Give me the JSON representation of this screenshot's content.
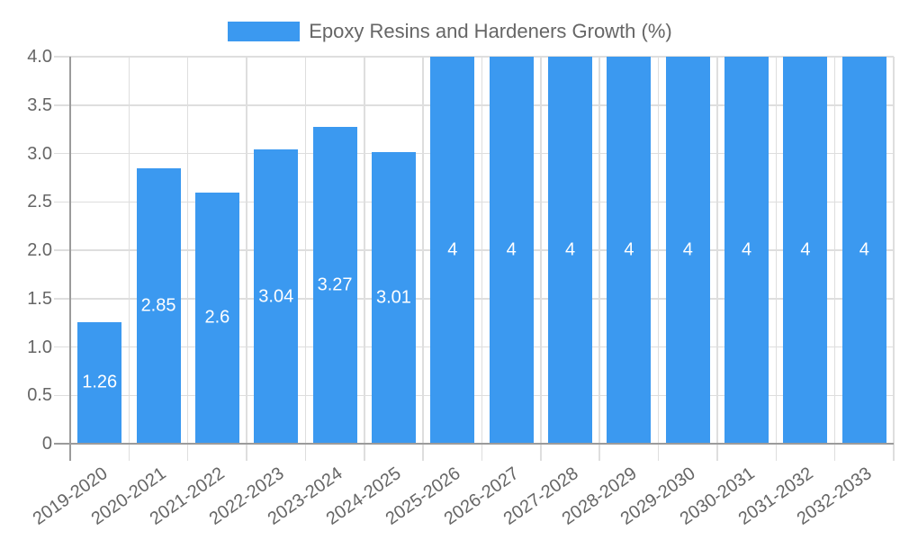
{
  "chart_data": {
    "type": "bar",
    "title": "Epoxy Resins and Hardeners Growth (%)",
    "legend": [
      "Epoxy Resins and Hardeners Growth (%)"
    ],
    "legend_position": "top",
    "categories": [
      "2019-2020",
      "2020-2021",
      "2021-2022",
      "2022-2023",
      "2023-2024",
      "2024-2025",
      "2025-2026",
      "2026-2027",
      "2027-2028",
      "2028-2029",
      "2029-2030",
      "2030-2031",
      "2031-2032",
      "2032-2033"
    ],
    "values": [
      1.26,
      2.85,
      2.6,
      3.04,
      3.27,
      3.01,
      4,
      4,
      4,
      4,
      4,
      4,
      4,
      4
    ],
    "value_labels": [
      "1.26",
      "2.85",
      "2.6",
      "3.04",
      "3.27",
      "3.01",
      "4",
      "4",
      "4",
      "4",
      "4",
      "4",
      "4",
      "4"
    ],
    "xlabel": "",
    "ylabel": "",
    "ylim": [
      0,
      4
    ],
    "yticks": {
      "step": 0.5,
      "labels": [
        "0",
        "0.5",
        "1.0",
        "1.5",
        "2.0",
        "2.5",
        "3.0",
        "3.5",
        "4.0"
      ]
    },
    "grid": true,
    "x_label_rotation_deg": -35,
    "colors": {
      "bar": "#3b99f0",
      "grid": "#dedede",
      "axis": "#9b9b9b",
      "tick_label": "#666666",
      "value_label": "#ffffff",
      "legend_text": "#666666",
      "background": "#ffffff"
    }
  }
}
